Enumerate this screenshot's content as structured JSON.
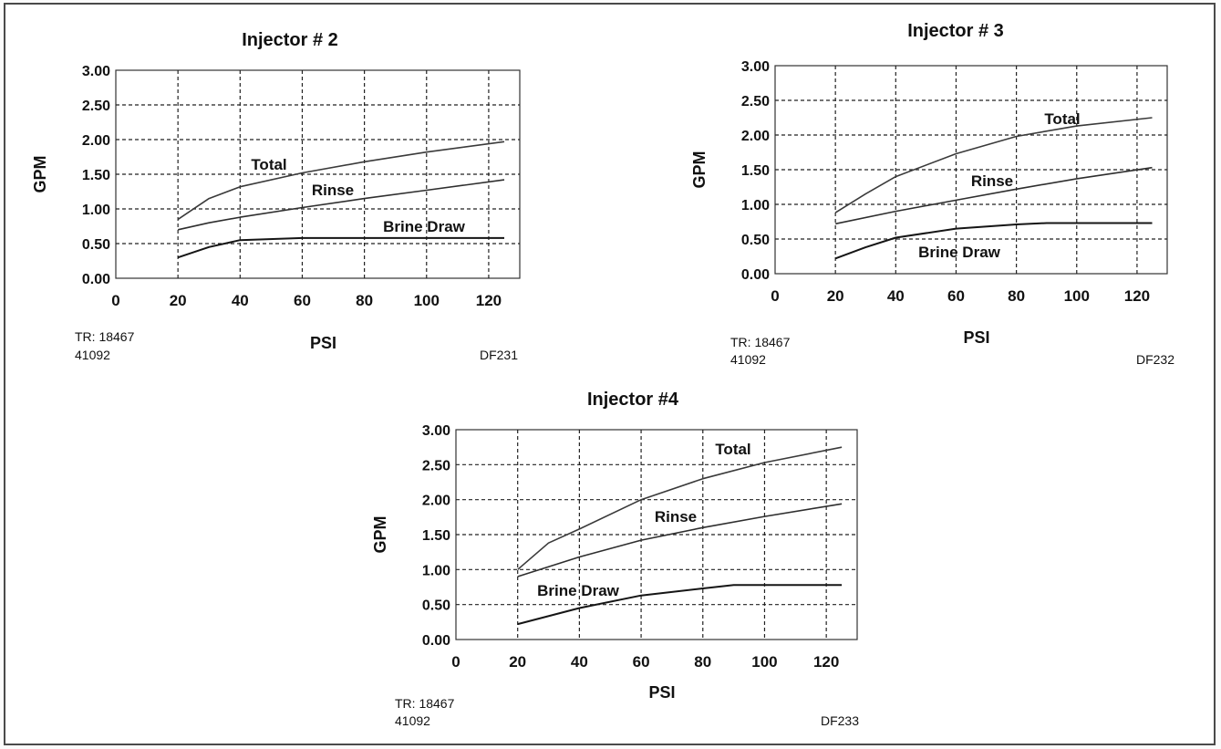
{
  "colors": {
    "frame": "#4a4a4a",
    "grid": "#222222",
    "total_line": "#3a3a3a",
    "rinse_line": "#2e2e2e",
    "brine_line": "#151515"
  },
  "chart_data": [
    {
      "type": "line",
      "title": "Injector # 2",
      "xlabel": "PSI",
      "ylabel": "GPM",
      "xlim": [
        0,
        130
      ],
      "ylim": [
        0,
        3
      ],
      "x_ticks": [
        "0",
        "20",
        "40",
        "60",
        "80",
        "100",
        "120"
      ],
      "y_ticks": [
        "0.00",
        "0.50",
        "1.00",
        "1.50",
        "2.00",
        "2.50",
        "3.00"
      ],
      "grid": true,
      "footer_left": [
        "TR: 18467",
        "41092"
      ],
      "footer_right": "DF231",
      "series": [
        {
          "name": "Total",
          "x": [
            20,
            30,
            40,
            60,
            80,
            100,
            125
          ],
          "y": [
            0.85,
            1.15,
            1.32,
            1.52,
            1.68,
            1.82,
            1.97
          ]
        },
        {
          "name": "Rinse",
          "x": [
            20,
            30,
            40,
            60,
            80,
            100,
            125
          ],
          "y": [
            0.7,
            0.8,
            0.88,
            1.02,
            1.15,
            1.27,
            1.42
          ]
        },
        {
          "name": "Brine Draw",
          "x": [
            20,
            30,
            40,
            60,
            80,
            100,
            125
          ],
          "y": [
            0.3,
            0.45,
            0.55,
            0.58,
            0.58,
            0.58,
            0.58
          ]
        }
      ]
    },
    {
      "type": "line",
      "title": "Injector # 3",
      "xlabel": "PSI",
      "ylabel": "GPM",
      "xlim": [
        0,
        130
      ],
      "ylim": [
        0,
        3
      ],
      "x_ticks": [
        "0",
        "20",
        "40",
        "60",
        "80",
        "100",
        "120"
      ],
      "y_ticks": [
        "0.00",
        "0.50",
        "1.00",
        "1.50",
        "2.00",
        "2.50",
        "3.00"
      ],
      "grid": true,
      "footer_left": [
        "TR: 18467",
        "41092"
      ],
      "footer_right": "DF232",
      "series": [
        {
          "name": "Total",
          "x": [
            20,
            30,
            40,
            60,
            80,
            100,
            125
          ],
          "y": [
            0.88,
            1.15,
            1.4,
            1.73,
            1.98,
            2.13,
            2.25
          ]
        },
        {
          "name": "Rinse",
          "x": [
            20,
            40,
            60,
            80,
            100,
            125
          ],
          "y": [
            0.72,
            0.9,
            1.06,
            1.22,
            1.37,
            1.53
          ]
        },
        {
          "name": "Brine Draw",
          "x": [
            20,
            30,
            40,
            60,
            80,
            90,
            125
          ],
          "y": [
            0.22,
            0.38,
            0.52,
            0.65,
            0.71,
            0.73,
            0.73
          ]
        }
      ]
    },
    {
      "type": "line",
      "title": "Injector #4",
      "xlabel": "PSI",
      "ylabel": "GPM",
      "xlim": [
        0,
        130
      ],
      "ylim": [
        0,
        3
      ],
      "x_ticks": [
        "0",
        "20",
        "40",
        "60",
        "80",
        "100",
        "120"
      ],
      "y_ticks": [
        "0.00",
        "0.50",
        "1.00",
        "1.50",
        "2.00",
        "2.50",
        "3.00"
      ],
      "grid": true,
      "footer_left": [
        "TR: 18467",
        "41092"
      ],
      "footer_right": "DF233",
      "series": [
        {
          "name": "Total",
          "x": [
            20,
            30,
            40,
            60,
            80,
            100,
            125
          ],
          "y": [
            1.0,
            1.38,
            1.58,
            2.0,
            2.3,
            2.53,
            2.75
          ]
        },
        {
          "name": "Rinse",
          "x": [
            20,
            40,
            60,
            80,
            100,
            125
          ],
          "y": [
            0.9,
            1.18,
            1.42,
            1.6,
            1.76,
            1.94
          ]
        },
        {
          "name": "Brine Draw",
          "x": [
            20,
            40,
            60,
            80,
            90,
            125
          ],
          "y": [
            0.22,
            0.45,
            0.63,
            0.73,
            0.78,
            0.78
          ]
        }
      ]
    }
  ]
}
